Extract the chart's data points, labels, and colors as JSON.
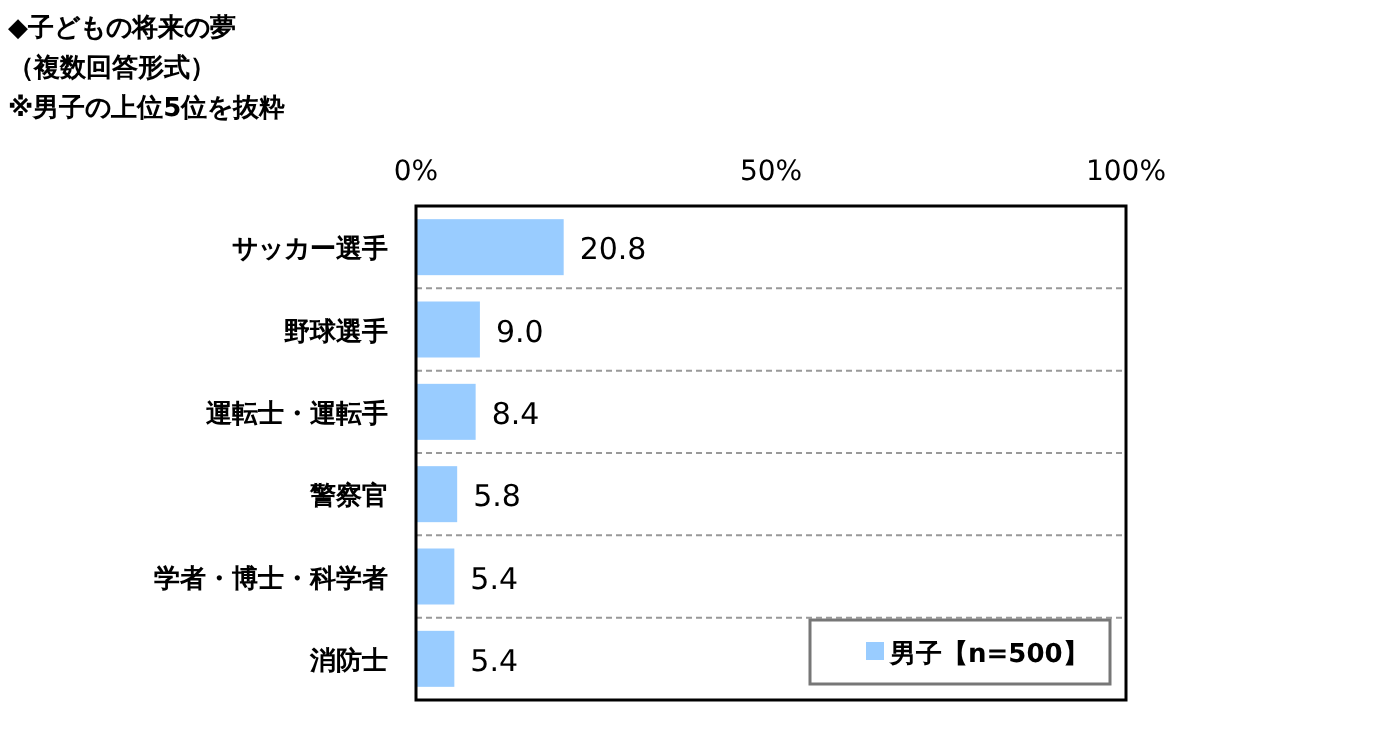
{
  "chart_data": {
    "type": "bar",
    "orientation": "horizontal",
    "title": "◆子どもの将来の夢",
    "subtitle": "（複数回答形式）",
    "annotations": [
      "※男子の上位5位を抜粋"
    ],
    "categories": [
      "サッカー選手",
      "野球選手",
      "運転士・運転手",
      "警察官",
      "学者・博士・科学者",
      "消防士"
    ],
    "series": [
      {
        "name": "男子【n=500】",
        "color": "#99ccff",
        "values": [
          20.8,
          9.0,
          8.4,
          5.8,
          5.4,
          5.4
        ],
        "value_labels": [
          "20.8",
          "9.0",
          "8.4",
          "5.8",
          "5.4",
          "5.4"
        ]
      }
    ],
    "xlim": [
      0,
      100
    ],
    "xticks": [
      {
        "value": 0,
        "label": "0%"
      },
      {
        "value": 50,
        "label": "50%"
      },
      {
        "value": 100,
        "label": "100%"
      }
    ],
    "grid": "y",
    "legend": "bottom right"
  }
}
